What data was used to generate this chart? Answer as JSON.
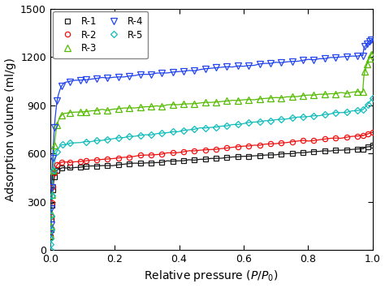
{
  "xlabel": "Relative pressure ($P/P_0$)",
  "ylabel": "Adsorption volume (ml/g)",
  "xlim": [
    0.0,
    1.0
  ],
  "ylim": [
    0,
    1500
  ],
  "yticks": [
    0,
    300,
    600,
    900,
    1200,
    1500
  ],
  "xticks": [
    0.0,
    0.2,
    0.4,
    0.6,
    0.8,
    1.0
  ],
  "series": [
    {
      "label": "R-1",
      "color": "#1a1a1a",
      "marker": "s",
      "markersize": 4.5,
      "plateau": 510,
      "final": 650,
      "knee": 0.04,
      "tau": 0.006,
      "slope_mid": 120,
      "upturn": false
    },
    {
      "label": "R-2",
      "color": "#ee1111",
      "marker": "o",
      "markersize": 4.5,
      "plateau": 545,
      "final": 730,
      "knee": 0.04,
      "tau": 0.006,
      "slope_mid": 165,
      "upturn": false
    },
    {
      "label": "R-3",
      "color": "#55bb00",
      "marker": "^",
      "markersize": 5.5,
      "plateau": 855,
      "final": 1230,
      "knee": 0.06,
      "tau": 0.009,
      "slope_mid": 130,
      "upturn": true
    },
    {
      "label": "R-4",
      "color": "#2244ee",
      "marker": "v",
      "markersize": 5.5,
      "plateau": 1050,
      "final": 1315,
      "knee": 0.07,
      "tau": 0.01,
      "slope_mid": 160,
      "upturn": true
    },
    {
      "label": "R-5",
      "color": "#11bbbb",
      "marker": "D",
      "markersize": 4.5,
      "plateau": 660,
      "final": 940,
      "knee": 0.05,
      "tau": 0.008,
      "slope_mid": 210,
      "upturn": false,
      "start_zero": true
    }
  ],
  "legend_ncol": 2,
  "legend_fontsize": 8.5,
  "axis_fontsize": 10,
  "tick_fontsize": 9
}
